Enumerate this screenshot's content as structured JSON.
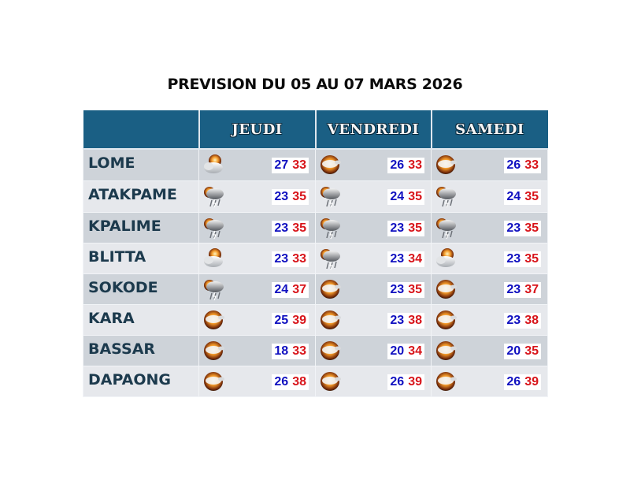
{
  "title": "PREVISION DU 05 AU 07 MARS 2026",
  "colors": {
    "header_bg": "#1a5f84",
    "min_temp": "#1010c0",
    "max_temp": "#d8141a",
    "city_text": "#1c3a4d"
  },
  "header": {
    "days": [
      "JEUDI",
      "VENDREDI",
      "SAMEDI"
    ]
  },
  "rows": [
    {
      "city": "LOME",
      "days": [
        {
          "icon": "partly-cloudy-sun-icon",
          "min": "27",
          "max": "33"
        },
        {
          "icon": "sunny-haze-icon",
          "min": "26",
          "max": "33"
        },
        {
          "icon": "sunny-haze-icon",
          "min": "26",
          "max": "33"
        }
      ]
    },
    {
      "city": "ATAKPAME",
      "days": [
        {
          "icon": "thunderstorm-sun-icon",
          "min": "23",
          "max": "35"
        },
        {
          "icon": "thunderstorm-sun-icon",
          "min": "24",
          "max": "35"
        },
        {
          "icon": "thunderstorm-sun-icon",
          "min": "24",
          "max": "35"
        }
      ]
    },
    {
      "city": "KPALIME",
      "days": [
        {
          "icon": "thunderstorm-sun-icon",
          "min": "23",
          "max": "35"
        },
        {
          "icon": "thunderstorm-sun-icon",
          "min": "23",
          "max": "35"
        },
        {
          "icon": "thunderstorm-sun-icon",
          "min": "23",
          "max": "35"
        }
      ]
    },
    {
      "city": "BLITTA",
      "days": [
        {
          "icon": "partly-cloudy-sun-icon",
          "min": "23",
          "max": "33"
        },
        {
          "icon": "thunderstorm-sun-icon",
          "min": "23",
          "max": "34"
        },
        {
          "icon": "partly-cloudy-sun-icon",
          "min": "23",
          "max": "35"
        }
      ]
    },
    {
      "city": "SOKODE",
      "days": [
        {
          "icon": "thunderstorm-sun-icon",
          "min": "24",
          "max": "37"
        },
        {
          "icon": "sunny-haze-icon",
          "min": "23",
          "max": "35"
        },
        {
          "icon": "sunny-haze-icon",
          "min": "23",
          "max": "37"
        }
      ]
    },
    {
      "city": "KARA",
      "days": [
        {
          "icon": "sunny-haze-icon",
          "min": "25",
          "max": "39"
        },
        {
          "icon": "sunny-haze-icon",
          "min": "23",
          "max": "38"
        },
        {
          "icon": "sunny-haze-icon",
          "min": "23",
          "max": "38"
        }
      ]
    },
    {
      "city": "BASSAR",
      "days": [
        {
          "icon": "sunny-haze-icon",
          "min": "18",
          "max": "33"
        },
        {
          "icon": "sunny-haze-icon",
          "min": "20",
          "max": "34"
        },
        {
          "icon": "sunny-haze-icon",
          "min": "20",
          "max": "35"
        }
      ]
    },
    {
      "city": "DAPAONG",
      "days": [
        {
          "icon": "sunny-haze-icon",
          "min": "26",
          "max": "38"
        },
        {
          "icon": "sunny-haze-icon",
          "min": "26",
          "max": "39"
        },
        {
          "icon": "sunny-haze-icon",
          "min": "26",
          "max": "39"
        }
      ]
    }
  ]
}
